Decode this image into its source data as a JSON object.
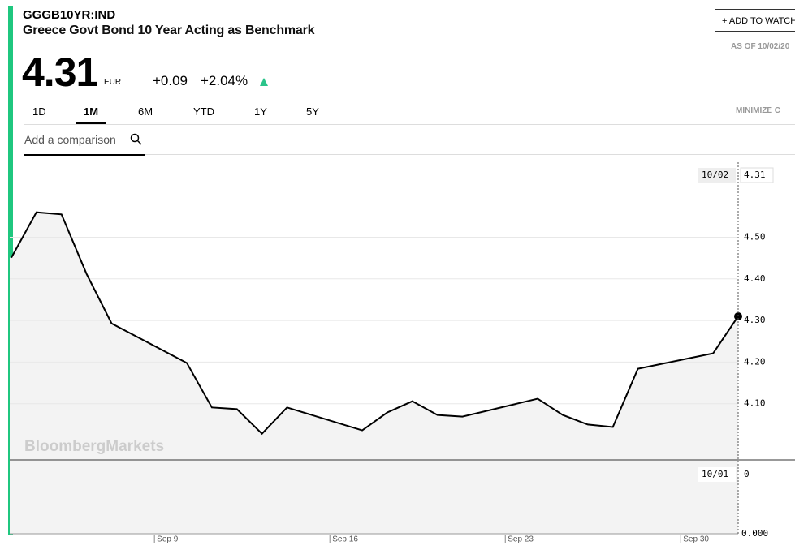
{
  "header": {
    "ticker": "GGGB10YR:IND",
    "name": "Greece Govt Bond 10 Year Acting as Benchmark",
    "price": "4.31",
    "currency": "EUR",
    "change": "+0.09",
    "change_pct": "+2.04%",
    "watchlist": "+ ADD TO WATCH",
    "as_of": "AS OF 10/02/20"
  },
  "tabs": [
    "1D",
    "1M",
    "6M",
    "YTD",
    "1Y",
    "5Y"
  ],
  "minimize": "MINIMIZE C",
  "comparison": "Add a comparison",
  "watermark": "BloombergMarkets",
  "chart_data": {
    "type": "line",
    "color": "#000000",
    "x": [
      3,
      4,
      5,
      6,
      7,
      10,
      11,
      12,
      13,
      14,
      17,
      18,
      19,
      20,
      21,
      24,
      25,
      26,
      27,
      28,
      31,
      32
    ],
    "values": [
      4.451,
      4.56,
      4.555,
      4.412,
      4.293,
      4.198,
      4.091,
      4.087,
      4.028,
      4.091,
      4.036,
      4.079,
      4.106,
      4.073,
      4.069,
      4.112,
      4.073,
      4.05,
      4.044,
      4.184,
      4.221,
      4.31
    ],
    "xlim": [
      3,
      32
    ],
    "xticks": [
      {
        "value": 9,
        "label": "Sep 9"
      },
      {
        "value": 16,
        "label": "Sep 16"
      },
      {
        "value": 23,
        "label": "Sep 23"
      },
      {
        "value": 30,
        "label": "Sep 30"
      }
    ],
    "ylim": [
      3.965,
      4.69
    ],
    "yticks": [
      {
        "value": 4.1,
        "label": "4.10"
      },
      {
        "value": 4.2,
        "label": "4.20"
      },
      {
        "value": 4.3,
        "label": "4.30"
      },
      {
        "value": 4.4,
        "label": "4.40"
      },
      {
        "value": 4.5,
        "label": "4.50"
      }
    ],
    "grid": true,
    "last_label": {
      "date": "10/02",
      "value": "4.31"
    },
    "volume": {
      "date": "10/01",
      "value": 0,
      "tick": {
        "value": 0,
        "label": "0.000"
      }
    }
  }
}
